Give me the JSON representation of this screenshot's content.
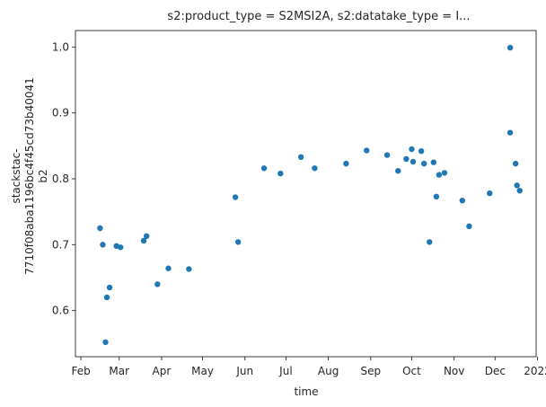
{
  "chart_data": {
    "type": "scatter",
    "title": "s2:product_type = S2MSI2A, s2:datatake_type = I...",
    "xlabel": "time",
    "ylabel_lines": [
      "stackstac-",
      "7710f08aba1196bc4f45cd73b40041",
      "b2"
    ],
    "xlim": [
      "2021-01-28",
      "2021-12-31"
    ],
    "ylim": [
      0.53,
      1.025
    ],
    "grid": false,
    "point_color": "#1f77b4",
    "x_ticks": [
      {
        "date": "2021-02-01",
        "label": "Feb"
      },
      {
        "date": "2021-03-01",
        "label": "Mar"
      },
      {
        "date": "2021-04-01",
        "label": "Apr"
      },
      {
        "date": "2021-05-01",
        "label": "May"
      },
      {
        "date": "2021-06-01",
        "label": "Jun"
      },
      {
        "date": "2021-07-01",
        "label": "Jul"
      },
      {
        "date": "2021-08-01",
        "label": "Aug"
      },
      {
        "date": "2021-09-01",
        "label": "Sep"
      },
      {
        "date": "2021-10-01",
        "label": "Oct"
      },
      {
        "date": "2021-11-01",
        "label": "Nov"
      },
      {
        "date": "2021-12-01",
        "label": "Dec"
      },
      {
        "date": "2022-01-01",
        "label": "2022"
      }
    ],
    "y_ticks": [
      {
        "value": 0.6,
        "label": "0.6"
      },
      {
        "value": 0.7,
        "label": "0.7"
      },
      {
        "value": 0.8,
        "label": "0.8"
      },
      {
        "value": 0.9,
        "label": "0.9"
      },
      {
        "value": 1.0,
        "label": "1.0"
      }
    ],
    "points": [
      {
        "x": "2021-02-15",
        "y": 0.725
      },
      {
        "x": "2021-02-17",
        "y": 0.7
      },
      {
        "x": "2021-02-19",
        "y": 0.552
      },
      {
        "x": "2021-02-20",
        "y": 0.62
      },
      {
        "x": "2021-02-22",
        "y": 0.635
      },
      {
        "x": "2021-02-27",
        "y": 0.698
      },
      {
        "x": "2021-03-02",
        "y": 0.696
      },
      {
        "x": "2021-03-19",
        "y": 0.706
      },
      {
        "x": "2021-03-21",
        "y": 0.713
      },
      {
        "x": "2021-03-29",
        "y": 0.64
      },
      {
        "x": "2021-04-06",
        "y": 0.664
      },
      {
        "x": "2021-04-21",
        "y": 0.663
      },
      {
        "x": "2021-05-25",
        "y": 0.772
      },
      {
        "x": "2021-05-27",
        "y": 0.704
      },
      {
        "x": "2021-06-15",
        "y": 0.816
      },
      {
        "x": "2021-06-27",
        "y": 0.808
      },
      {
        "x": "2021-07-12",
        "y": 0.833
      },
      {
        "x": "2021-07-22",
        "y": 0.816
      },
      {
        "x": "2021-08-14",
        "y": 0.823
      },
      {
        "x": "2021-08-29",
        "y": 0.843
      },
      {
        "x": "2021-09-13",
        "y": 0.836
      },
      {
        "x": "2021-09-21",
        "y": 0.812
      },
      {
        "x": "2021-09-27",
        "y": 0.83
      },
      {
        "x": "2021-10-01",
        "y": 0.845
      },
      {
        "x": "2021-10-02",
        "y": 0.826
      },
      {
        "x": "2021-10-08",
        "y": 0.842
      },
      {
        "x": "2021-10-10",
        "y": 0.823
      },
      {
        "x": "2021-10-14",
        "y": 0.704
      },
      {
        "x": "2021-10-17",
        "y": 0.825
      },
      {
        "x": "2021-10-19",
        "y": 0.773
      },
      {
        "x": "2021-10-21",
        "y": 0.806
      },
      {
        "x": "2021-10-25",
        "y": 0.809
      },
      {
        "x": "2021-11-07",
        "y": 0.767
      },
      {
        "x": "2021-11-12",
        "y": 0.728
      },
      {
        "x": "2021-11-27",
        "y": 0.778
      },
      {
        "x": "2021-12-12",
        "y": 0.999
      },
      {
        "x": "2021-12-12",
        "y": 0.87
      },
      {
        "x": "2021-12-16",
        "y": 0.823
      },
      {
        "x": "2021-12-17",
        "y": 0.79
      },
      {
        "x": "2021-12-19",
        "y": 0.782
      }
    ]
  }
}
